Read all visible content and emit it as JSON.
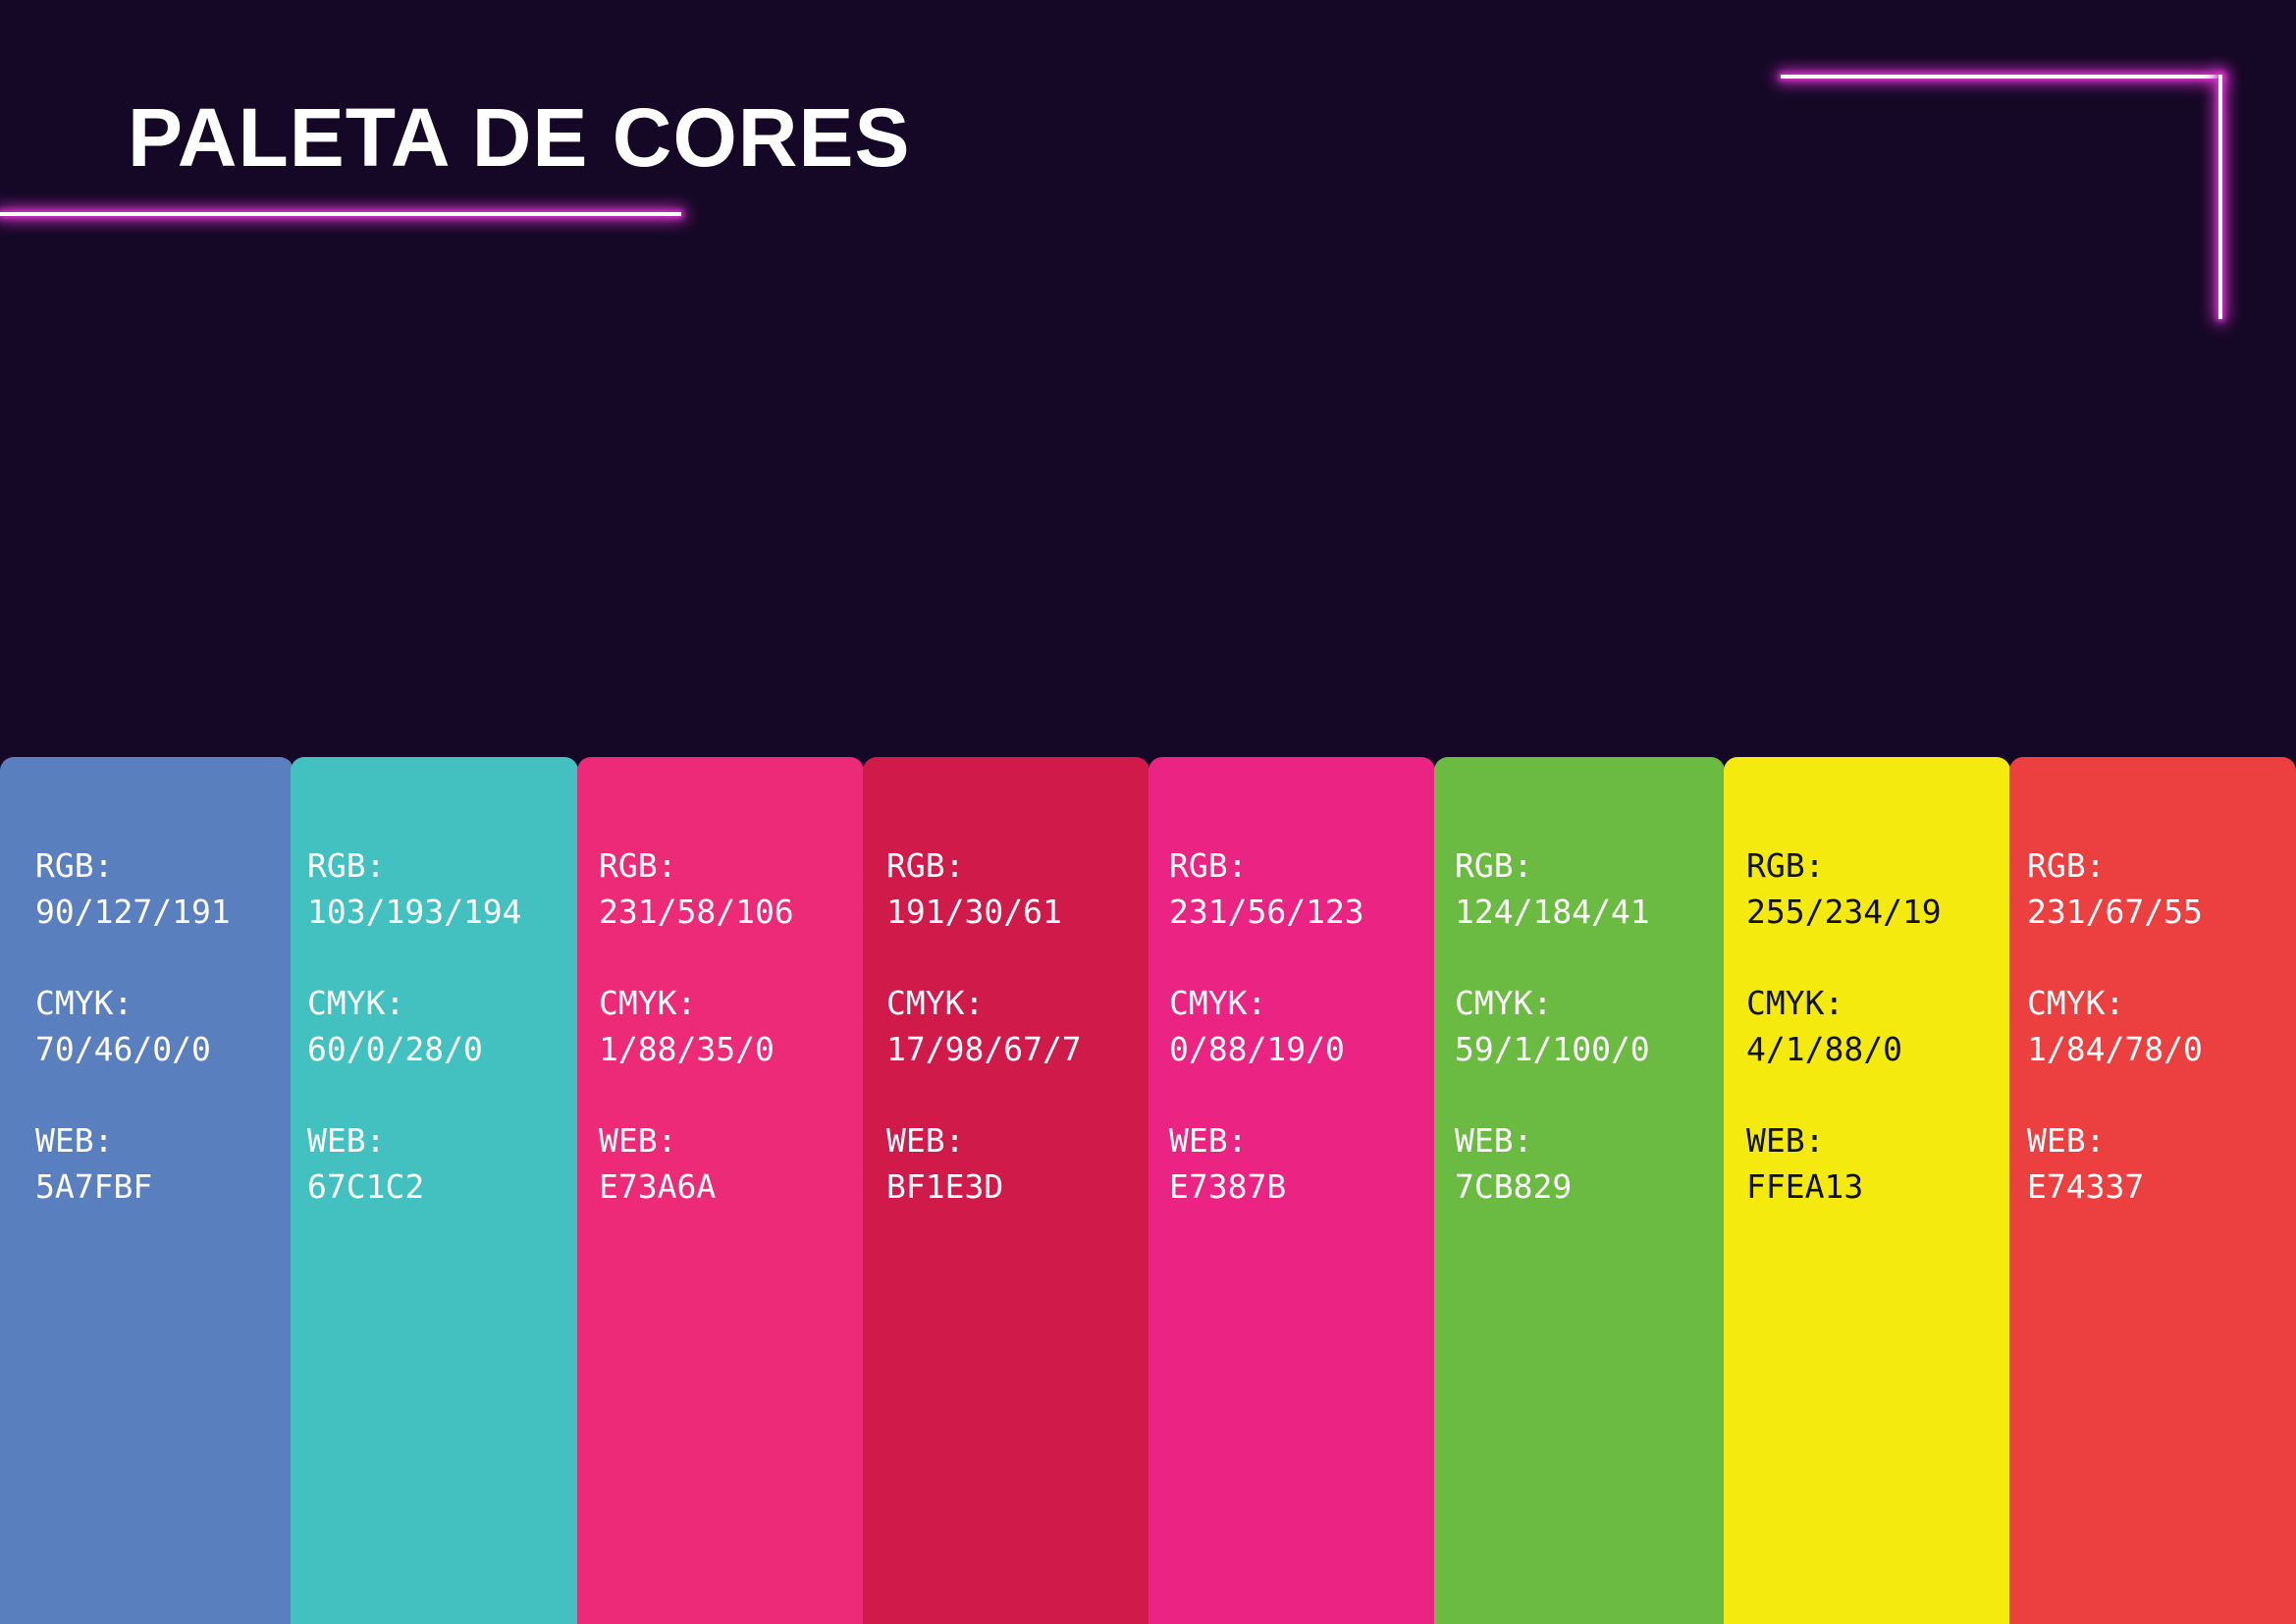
{
  "page": {
    "title": "PALETA DE CORES",
    "background": "#150826",
    "glow_color": "#d633c9"
  },
  "labels": {
    "rgb": "RGB:",
    "cmyk": "CMYK:",
    "web": "WEB:"
  },
  "swatches": [
    {
      "color": "#5A7FBF",
      "text_color": "#ffffff",
      "rgb": "90/127/191",
      "cmyk": "70/46/0/0",
      "web": "5A7FBF"
    },
    {
      "color": "#43C1C0",
      "text_color": "#ffffff",
      "rgb": "103/193/194",
      "cmyk": "60/0/28/0",
      "web": "67C1C2"
    },
    {
      "color": "#EC2A78",
      "text_color": "#ffffff",
      "rgb": "231/58/106",
      "cmyk": "1/88/35/0",
      "web": "E73A6A"
    },
    {
      "color": "#CF1A4A",
      "text_color": "#ffffff",
      "rgb": "191/30/61",
      "cmyk": "17/98/67/7",
      "web": "BF1E3D"
    },
    {
      "color": "#EB2382",
      "text_color": "#ffffff",
      "rgb": "231/56/123",
      "cmyk": "0/88/19/0",
      "web": "E7387B"
    },
    {
      "color": "#6BBB43",
      "text_color": "#ffffff",
      "rgb": "124/184/41",
      "cmyk": "59/1/100/0",
      "web": "7CB829"
    },
    {
      "color": "#F4EA0D",
      "text_color": "#111111",
      "rgb": "255/234/19",
      "cmyk": "4/1/88/0",
      "web": "FFEA13"
    },
    {
      "color": "#EC4040",
      "text_color": "#ffffff",
      "rgb": "231/67/55",
      "cmyk": "1/84/78/0",
      "web": "E74337"
    }
  ]
}
